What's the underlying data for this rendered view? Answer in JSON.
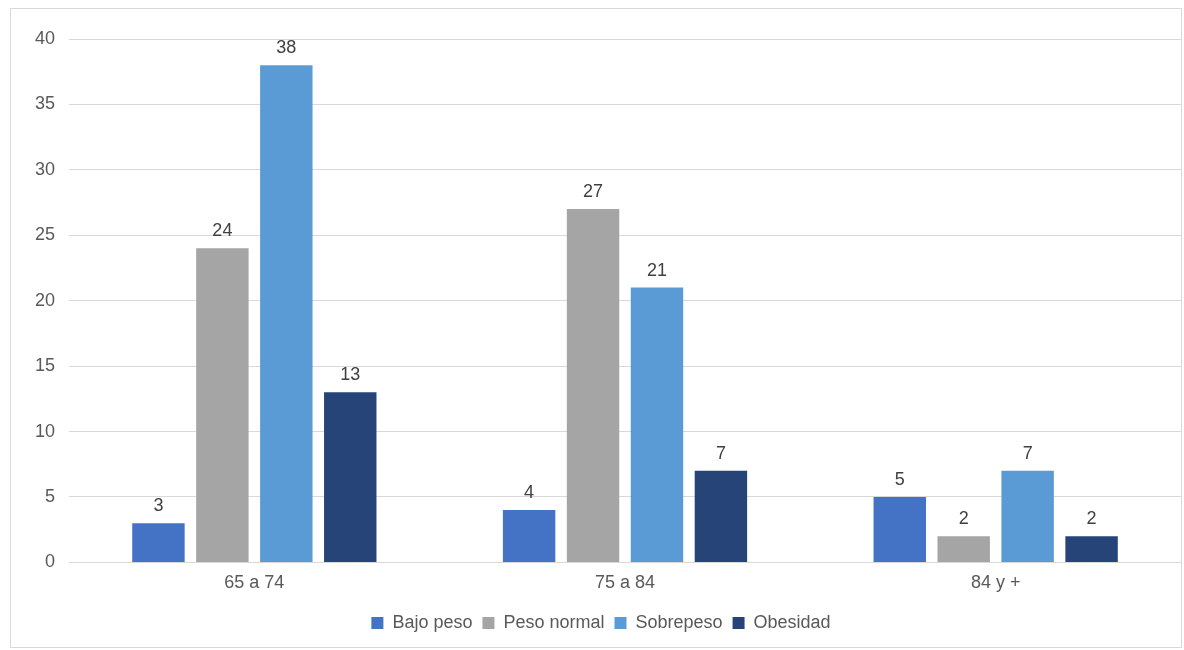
{
  "chart_data": {
    "type": "bar",
    "categories": [
      "65 a 74",
      "75 a 84",
      "84 y +"
    ],
    "series": [
      {
        "name": "Bajo peso",
        "color": "#4472c4",
        "values": [
          3,
          4,
          5
        ]
      },
      {
        "name": "Peso normal",
        "color": "#a5a5a5",
        "values": [
          24,
          27,
          2
        ]
      },
      {
        "name": "Sobrepeso",
        "color": "#5b9bd5",
        "values": [
          38,
          21,
          7
        ]
      },
      {
        "name": "Obesidad",
        "color": "#264478",
        "values": [
          13,
          7,
          2
        ]
      }
    ],
    "ylim": [
      0,
      40
    ],
    "yticks": [
      0,
      5,
      10,
      15,
      20,
      25,
      30,
      35,
      40
    ],
    "grid": "y",
    "legend": "bottom",
    "data_labels": true
  }
}
